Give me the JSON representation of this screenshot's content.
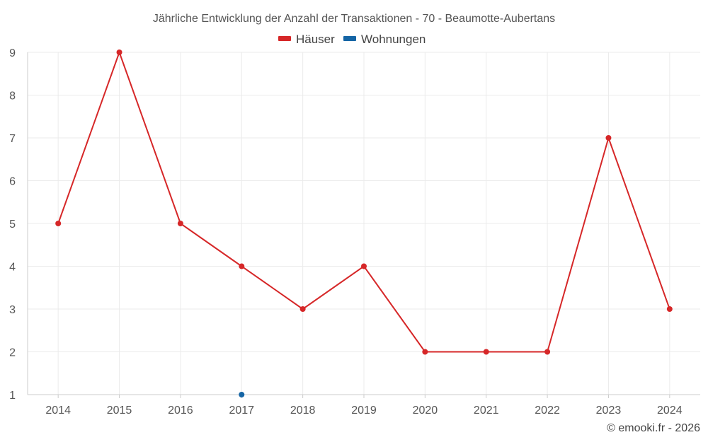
{
  "chart_data": {
    "type": "line",
    "title": "Jährliche Entwicklung der Anzahl der Transaktionen - 70 - Beaumotte-Aubertans",
    "xlabel": "",
    "ylabel": "",
    "categories": [
      "2014",
      "2015",
      "2016",
      "2017",
      "2018",
      "2019",
      "2020",
      "2021",
      "2022",
      "2023",
      "2024"
    ],
    "ylim": [
      1,
      9
    ],
    "yticks": [
      1,
      2,
      3,
      4,
      5,
      6,
      7,
      8,
      9
    ],
    "grid": true,
    "legend_position": "top-center",
    "series": [
      {
        "name": "Häuser",
        "color": "#d62728",
        "values": [
          5,
          9,
          5,
          4,
          3,
          4,
          2,
          2,
          2,
          7,
          3
        ]
      },
      {
        "name": "Wohnungen",
        "color": "#1565a5",
        "values": [
          null,
          null,
          null,
          1,
          null,
          null,
          null,
          null,
          null,
          null,
          null
        ]
      }
    ]
  },
  "credit": "© emooki.fr - 2026"
}
